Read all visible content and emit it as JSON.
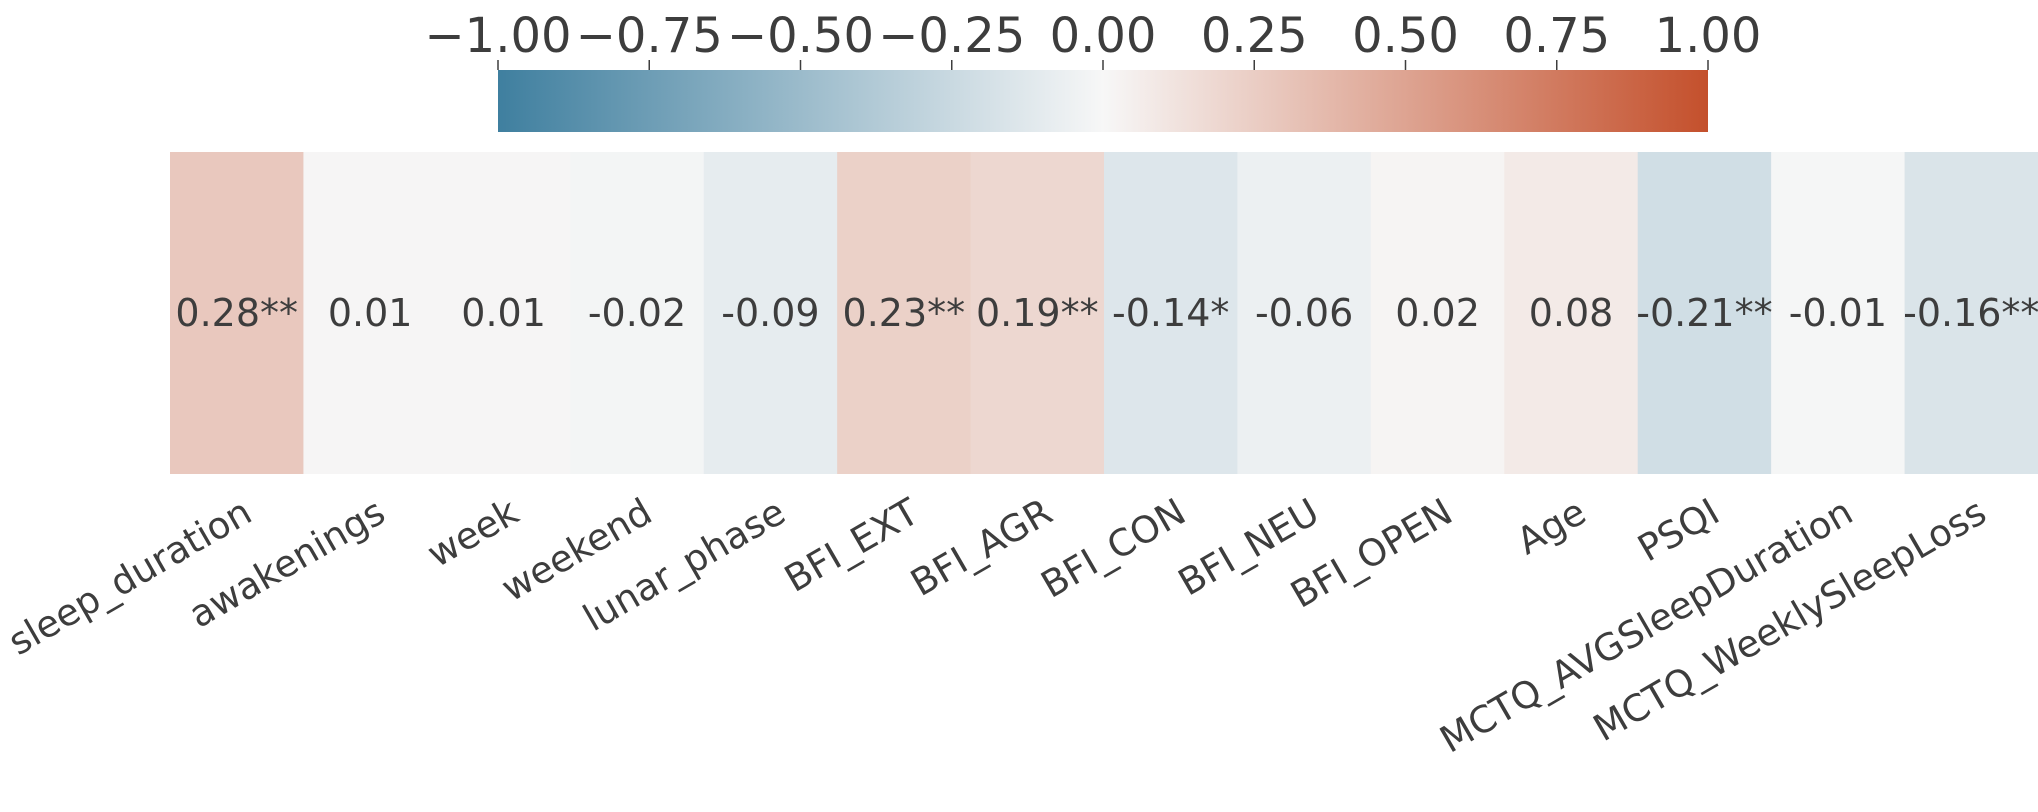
{
  "chart_data": {
    "type": "heatmap",
    "title": "",
    "xlabel": "",
    "ylabel": "",
    "categories": [
      "sleep_duration",
      "awakenings",
      "week",
      "weekend",
      "lunar_phase",
      "BFI_EXT",
      "BFI_AGR",
      "BFI_CON",
      "BFI_NEU",
      "BFI_OPEN",
      "Age",
      "PSQI",
      "MCTQ_AVGSleepDuration",
      "MCTQ_WeeklySleepLoss"
    ],
    "values": [
      0.28,
      0.01,
      0.01,
      -0.02,
      -0.09,
      0.23,
      0.19,
      -0.14,
      -0.06,
      0.02,
      0.08,
      -0.21,
      -0.01,
      -0.16
    ],
    "cell_labels": [
      "0.28**",
      "0.01",
      "0.01",
      "-0.02",
      "-0.09",
      "0.23**",
      "0.19**",
      "-0.14*",
      "-0.06",
      "0.02",
      "0.08",
      "-0.21**",
      "-0.01",
      "-0.16**"
    ],
    "colorbar": {
      "range": [
        -1.0,
        1.0
      ],
      "ticks": [
        -1.0,
        -0.75,
        -0.5,
        -0.25,
        0.0,
        0.25,
        0.5,
        0.75,
        1.0
      ],
      "tick_labels": [
        "−1.00",
        "−0.75",
        "−0.50",
        "−0.25",
        "0.00",
        "0.25",
        "0.50",
        "0.75",
        "1.00"
      ],
      "location": "top",
      "colormap": "diverging blue-white-red",
      "color_low": "#3f7f9f",
      "color_mid": "#f7f7f7",
      "color_high": "#c4502c"
    }
  }
}
